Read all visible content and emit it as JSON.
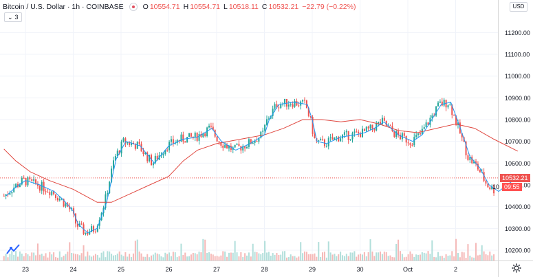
{
  "legend": {
    "title": "Bitcoin / U.S. Dollar · 1h · COINBASE",
    "ohlc": [
      {
        "k": "O",
        "v": "10554.71"
      },
      {
        "k": "H",
        "v": "10554.71"
      },
      {
        "k": "L",
        "v": "10518.11"
      },
      {
        "k": "C",
        "v": "10532.21"
      },
      {
        "k": "",
        "v": "−22.79 (−0.22%)"
      }
    ],
    "indicator_count": "3"
  },
  "currency_badge": "USD",
  "last_price_label": "10532.21",
  "countdown_label": "09:55",
  "hidden_price_label": "10",
  "colors": {
    "up": "#26a69a",
    "down": "#ef5350",
    "up_volume": "#b2dfdb",
    "down_volume": "#f5b9b8",
    "ma_fast": "#2196f3",
    "ma_slow": "#e0473f",
    "last_price_line": "#ef5350",
    "countdown_bg": "#ff5252"
  },
  "chart_data": {
    "type": "candlestick",
    "y_axis": {
      "ticks": [
        "11200.00",
        "11100.00",
        "11000.00",
        "10900.00",
        "10800.00",
        "10700.00",
        "10600.00",
        "10500.00",
        "10400.00",
        "10300.00",
        "10200.00"
      ],
      "range": [
        10160,
        11215
      ]
    },
    "x_axis": {
      "ticks": [
        "23",
        "24",
        "25",
        "26",
        "27",
        "28",
        "29",
        "30",
        "Oct",
        "2"
      ],
      "range_days": [
        22.55,
        3.3
      ]
    },
    "last_price": 10532.21,
    "ma_fast_points": [
      [
        22.6,
        10450
      ],
      [
        22.8,
        10490
      ],
      [
        23.0,
        10520
      ],
      [
        23.3,
        10500
      ],
      [
        23.6,
        10470
      ],
      [
        23.8,
        10430
      ],
      [
        24.0,
        10380
      ],
      [
        24.1,
        10320
      ],
      [
        24.3,
        10280
      ],
      [
        24.5,
        10300
      ],
      [
        24.7,
        10420
      ],
      [
        24.9,
        10620
      ],
      [
        25.1,
        10700
      ],
      [
        25.4,
        10680
      ],
      [
        25.7,
        10600
      ],
      [
        26.0,
        10680
      ],
      [
        26.3,
        10710
      ],
      [
        26.6,
        10720
      ],
      [
        26.9,
        10760
      ],
      [
        27.1,
        10700
      ],
      [
        27.4,
        10660
      ],
      [
        27.7,
        10690
      ],
      [
        28.0,
        10730
      ],
      [
        28.1,
        10800
      ],
      [
        28.3,
        10870
      ],
      [
        28.6,
        10880
      ],
      [
        28.9,
        10870
      ],
      [
        29.0,
        10800
      ],
      [
        29.1,
        10700
      ],
      [
        29.3,
        10690
      ],
      [
        29.6,
        10720
      ],
      [
        29.9,
        10730
      ],
      [
        30.1,
        10740
      ],
      [
        30.3,
        10760
      ],
      [
        30.5,
        10790
      ],
      [
        30.8,
        10730
      ],
      [
        31.1,
        10700
      ],
      [
        31.3,
        10730
      ],
      [
        31.5,
        10800
      ],
      [
        31.7,
        10870
      ],
      [
        31.9,
        10880
      ],
      [
        32.1,
        10760
      ],
      [
        32.3,
        10630
      ],
      [
        32.5,
        10580
      ],
      [
        32.7,
        10500
      ],
      [
        32.9,
        10470
      ],
      [
        33.2,
        10520
      ]
    ],
    "ma_slow_points": [
      [
        22.55,
        10665
      ],
      [
        22.8,
        10610
      ],
      [
        23.1,
        10560
      ],
      [
        23.5,
        10520
      ],
      [
        24.0,
        10480
      ],
      [
        24.5,
        10420
      ],
      [
        24.8,
        10420
      ],
      [
        25.2,
        10460
      ],
      [
        25.6,
        10500
      ],
      [
        26.0,
        10540
      ],
      [
        26.3,
        10610
      ],
      [
        26.6,
        10660
      ],
      [
        27.0,
        10690
      ],
      [
        27.5,
        10710
      ],
      [
        28.0,
        10730
      ],
      [
        28.4,
        10760
      ],
      [
        28.8,
        10800
      ],
      [
        29.2,
        10800
      ],
      [
        29.6,
        10790
      ],
      [
        30.0,
        10800
      ],
      [
        30.4,
        10780
      ],
      [
        30.8,
        10750
      ],
      [
        31.2,
        10740
      ],
      [
        31.6,
        10760
      ],
      [
        32.0,
        10780
      ],
      [
        32.4,
        10760
      ],
      [
        32.8,
        10710
      ],
      [
        33.3,
        10655
      ]
    ]
  }
}
